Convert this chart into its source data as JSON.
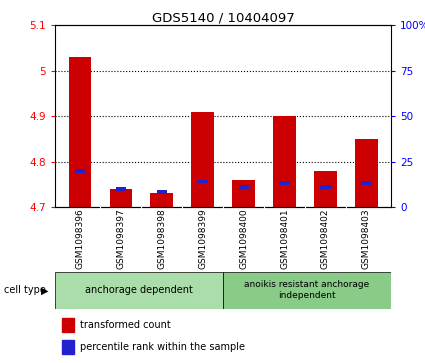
{
  "title": "GDS5140 / 10404097",
  "samples": [
    "GSM1098396",
    "GSM1098397",
    "GSM1098398",
    "GSM1098399",
    "GSM1098400",
    "GSM1098401",
    "GSM1098402",
    "GSM1098403"
  ],
  "red_values": [
    5.03,
    4.74,
    4.73,
    4.91,
    4.76,
    4.9,
    4.78,
    4.85
  ],
  "blue_percentile": [
    20,
    10,
    8,
    14,
    11,
    13,
    11,
    13
  ],
  "ymin": 4.7,
  "ymax": 5.1,
  "y_ticks": [
    4.7,
    4.8,
    4.9,
    5.0,
    5.1
  ],
  "y_tick_labels": [
    "4.7",
    "4.8",
    "4.9",
    "5",
    "5.1"
  ],
  "y2_ticks": [
    0,
    25,
    50,
    75,
    100
  ],
  "y2_tick_labels": [
    "0",
    "25",
    "50",
    "75",
    "100%"
  ],
  "grid_lines": [
    4.8,
    4.9,
    5.0
  ],
  "bar_width": 0.55,
  "red_color": "#cc0000",
  "blue_color": "#2222cc",
  "label_bg": "#cccccc",
  "ct_color1": "#aaddaa",
  "ct_color2": "#88cc88",
  "ct_label1": "anchorage dependent",
  "ct_label2": "anoikis resistant anchorage\nindependent",
  "ct_group1": [
    0,
    3
  ],
  "ct_group2": [
    4,
    7
  ],
  "legend_red": "transformed count",
  "legend_blue": "percentile rank within the sample",
  "cell_type_label": "cell type"
}
